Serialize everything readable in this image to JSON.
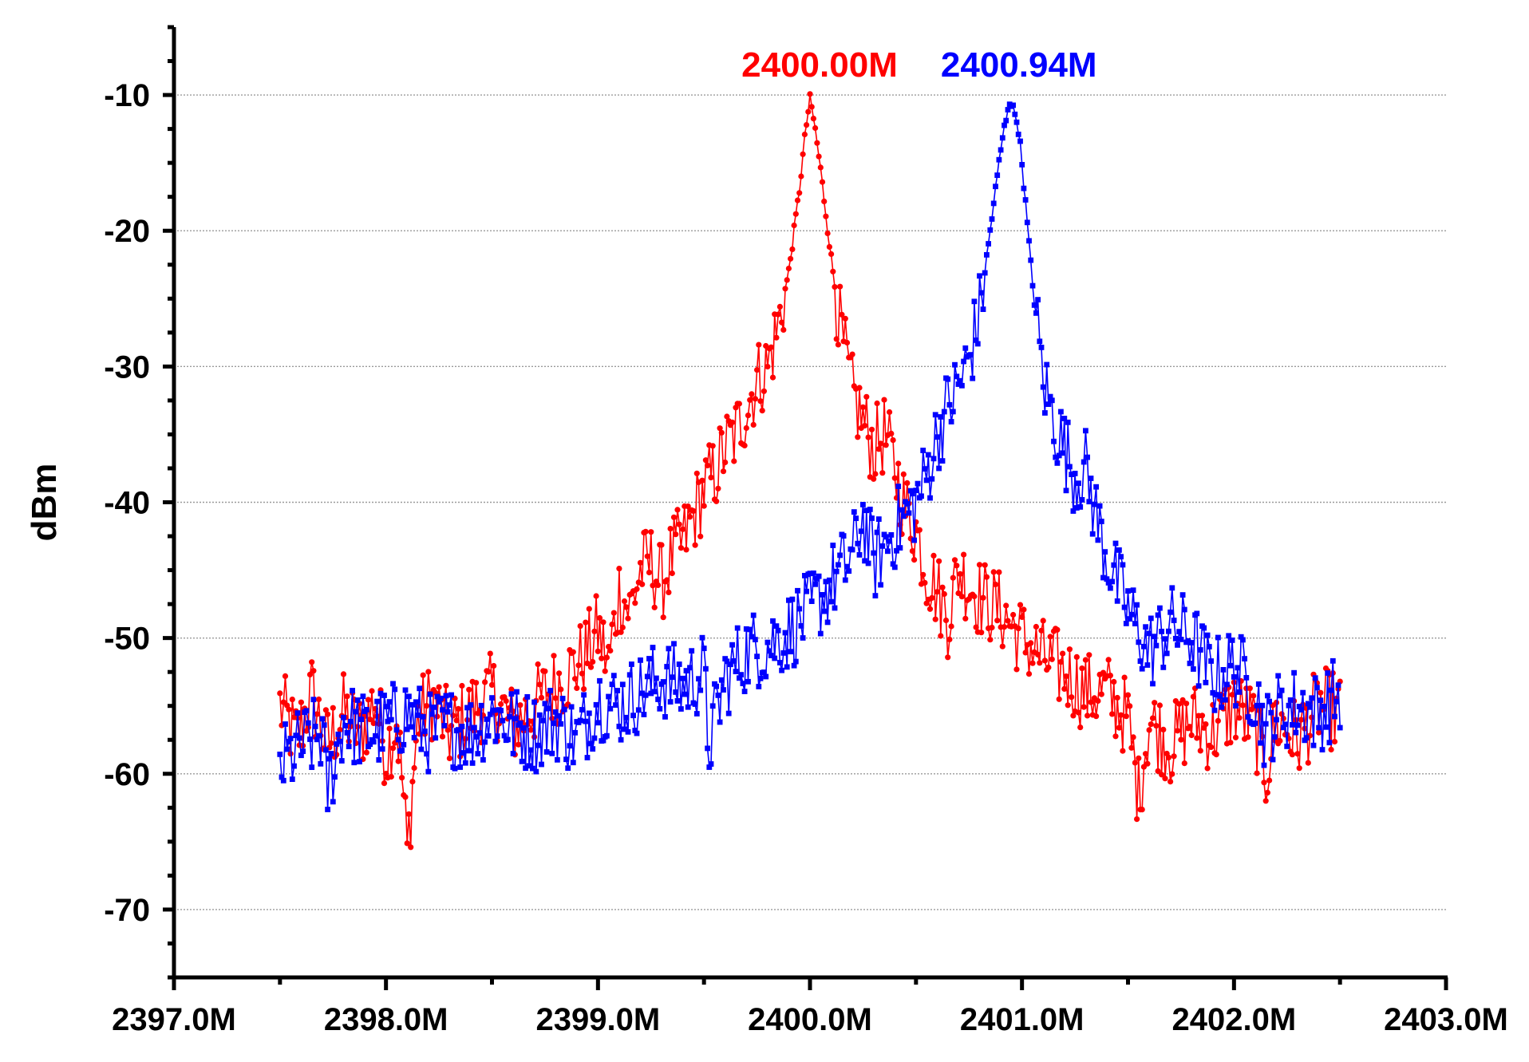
{
  "chart_data": {
    "type": "line",
    "title": "",
    "xlabel": "",
    "ylabel": "dBm",
    "xlim": [
      2397.0,
      2403.0
    ],
    "ylim": [
      -75,
      -5
    ],
    "grid": true,
    "x_tick_values": [
      2397,
      2398,
      2399,
      2400,
      2401,
      2402,
      2403
    ],
    "x_tick_labels": [
      "2397.0M",
      "2398.0M",
      "2399.0M",
      "2400.0M",
      "2401.0M",
      "2402.0M",
      "2403.0M"
    ],
    "y_tick_values": [
      -70,
      -60,
      -50,
      -40,
      -30,
      -20,
      -10
    ],
    "y_tick_labels": [
      "-70",
      "-60",
      "-50",
      "-40",
      "-30",
      "-20",
      "-10"
    ],
    "series": [
      {
        "name": "2400.00M",
        "color": "#ff0000",
        "marker": "circle",
        "peak_label": "2400.00M",
        "peak": [
          2400.0,
          -10.3
        ],
        "x": [
          2397.5,
          2397.58,
          2397.65,
          2397.72,
          2397.8,
          2397.88,
          2397.95,
          2398.0,
          2398.05,
          2398.08,
          2398.1,
          2398.15,
          2398.22,
          2398.3,
          2398.4,
          2398.5,
          2398.6,
          2398.7,
          2398.8,
          2398.9,
          2398.95,
          2399.0,
          2399.05,
          2399.1,
          2399.15,
          2399.2,
          2399.25,
          2399.3,
          2399.35,
          2399.4,
          2399.45,
          2399.5,
          2399.55,
          2399.6,
          2399.65,
          2399.7,
          2399.75,
          2399.8,
          2399.85,
          2399.9,
          2399.95,
          2399.98,
          2400.0,
          2400.02,
          2400.05,
          2400.1,
          2400.15,
          2400.2,
          2400.25,
          2400.3,
          2400.35,
          2400.4,
          2400.45,
          2400.5,
          2400.55,
          2400.6,
          2400.65,
          2400.7,
          2400.8,
          2400.9,
          2401.0,
          2401.1,
          2401.2,
          2401.3,
          2401.4,
          2401.5,
          2401.55,
          2401.6,
          2401.7,
          2401.8,
          2401.9,
          2402.0,
          2402.1,
          2402.15,
          2402.2,
          2402.3,
          2402.4,
          2402.5
        ],
        "y": [
          -55.0,
          -57.5,
          -54.0,
          -58.0,
          -55.5,
          -57.0,
          -54.5,
          -58.5,
          -56.0,
          -61.0,
          -65.8,
          -56.0,
          -54.5,
          -57.0,
          -55.5,
          -54.0,
          -56.5,
          -55.0,
          -53.5,
          -52.0,
          -51.0,
          -49.5,
          -52.0,
          -46.5,
          -48.0,
          -45.0,
          -44.5,
          -46.0,
          -44.0,
          -43.0,
          -41.0,
          -39.0,
          -38.0,
          -36.0,
          -35.0,
          -33.0,
          -31.0,
          -30.0,
          -27.0,
          -23.0,
          -17.0,
          -12.5,
          -10.3,
          -12.0,
          -15.5,
          -22.0,
          -28.0,
          -32.0,
          -34.0,
          -36.0,
          -35.0,
          -37.5,
          -40.5,
          -42.0,
          -45.0,
          -46.5,
          -48.5,
          -45.0,
          -47.0,
          -48.0,
          -50.0,
          -51.5,
          -52.5,
          -54.0,
          -54.0,
          -56.0,
          -61.5,
          -56.0,
          -58.0,
          -56.0,
          -57.0,
          -55.0,
          -56.5,
          -60.0,
          -56.0,
          -57.5,
          -55.0,
          -55.5
        ]
      },
      {
        "name": "2400.94M",
        "color": "#0000ff",
        "marker": "square",
        "peak_label": "2400.94M",
        "peak": [
          2400.94,
          -10.3
        ],
        "x": [
          2397.5,
          2397.6,
          2397.7,
          2397.72,
          2397.8,
          2397.9,
          2398.0,
          2398.1,
          2398.2,
          2398.3,
          2398.4,
          2398.5,
          2398.6,
          2398.7,
          2398.8,
          2398.9,
          2399.0,
          2399.1,
          2399.2,
          2399.3,
          2399.4,
          2399.5,
          2399.52,
          2399.6,
          2399.7,
          2399.8,
          2399.9,
          2400.0,
          2400.1,
          2400.2,
          2400.25,
          2400.3,
          2400.4,
          2400.5,
          2400.55,
          2400.6,
          2400.65,
          2400.7,
          2400.75,
          2400.8,
          2400.85,
          2400.9,
          2400.94,
          2400.98,
          2401.0,
          2401.05,
          2401.1,
          2401.15,
          2401.2,
          2401.25,
          2401.3,
          2401.35,
          2401.4,
          2401.5,
          2401.6,
          2401.7,
          2401.8,
          2401.9,
          2402.0,
          2402.1,
          2402.15,
          2402.2,
          2402.3,
          2402.4,
          2402.5
        ],
        "y": [
          -59.5,
          -58.0,
          -57.0,
          -61.5,
          -56.0,
          -57.0,
          -56.5,
          -55.5,
          -57.0,
          -56.5,
          -57.0,
          -55.5,
          -56.5,
          -57.0,
          -56.0,
          -57.5,
          -54.5,
          -55.0,
          -54.0,
          -53.0,
          -53.5,
          -52.5,
          -58.0,
          -53.0,
          -51.0,
          -50.5,
          -49.5,
          -48.0,
          -46.0,
          -44.0,
          -41.0,
          -44.5,
          -42.0,
          -40.0,
          -38.0,
          -35.0,
          -33.0,
          -31.5,
          -29.5,
          -26.0,
          -20.0,
          -14.0,
          -10.3,
          -12.0,
          -15.0,
          -24.0,
          -31.0,
          -34.0,
          -36.0,
          -38.0,
          -37.5,
          -41.0,
          -44.0,
          -48.0,
          -51.0,
          -49.0,
          -50.0,
          -53.0,
          -52.0,
          -54.0,
          -57.0,
          -55.5,
          -55.0,
          -55.5,
          -54.0
        ]
      }
    ]
  }
}
